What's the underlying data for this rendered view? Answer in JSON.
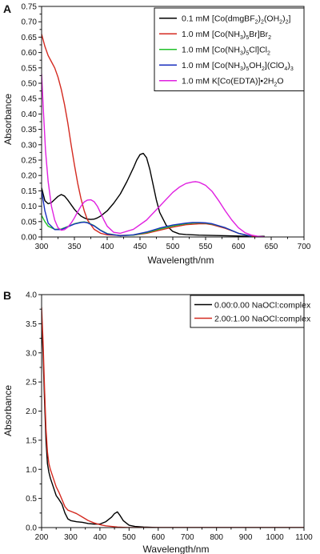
{
  "chart_data": [
    {
      "panel_label": "A",
      "type": "line",
      "xlabel": "Wavelength/nm",
      "ylabel": "Absorbance",
      "xlim": [
        300,
        700
      ],
      "ylim": [
        0,
        0.75
      ],
      "xticks": [
        300,
        350,
        400,
        450,
        500,
        550,
        600,
        650,
        700
      ],
      "yticks": [
        0.0,
        0.05,
        0.1,
        0.15,
        0.2,
        0.25,
        0.3,
        0.35,
        0.4,
        0.45,
        0.5,
        0.55,
        0.6,
        0.65,
        0.7,
        0.75
      ],
      "ytick_labels": [
        "0.00",
        "0.05",
        "0.10",
        "0.15",
        "0.20",
        "0.25",
        "0.30",
        "0.35",
        "0.40",
        "0.45",
        "0.50",
        "0.55",
        "0.60",
        "0.65",
        "0.70",
        "0.75"
      ],
      "legend_position": "top-right",
      "series": [
        {
          "name": "0.1 mM [Co(dmgBF2)2(OH2)2]",
          "legend_parts": [
            [
              "0.1 mM [Co(dmgBF",
              ""
            ],
            [
              "2",
              "sub"
            ],
            [
              ")",
              ""
            ],
            [
              "2",
              "sub"
            ],
            [
              "(OH",
              ""
            ],
            [
              "2",
              "sub"
            ],
            [
              ")",
              ""
            ],
            [
              "2",
              "sub"
            ],
            [
              "]",
              ""
            ]
          ],
          "color": "#000000",
          "x": [
            300,
            305,
            310,
            315,
            320,
            325,
            330,
            335,
            340,
            345,
            350,
            355,
            360,
            365,
            370,
            375,
            380,
            385,
            390,
            400,
            410,
            420,
            430,
            440,
            445,
            450,
            455,
            460,
            465,
            470,
            475,
            480,
            490,
            500,
            510,
            520,
            530,
            540,
            560,
            580,
            600,
            620,
            640
          ],
          "y": [
            0.16,
            0.118,
            0.108,
            0.112,
            0.122,
            0.132,
            0.138,
            0.133,
            0.12,
            0.105,
            0.09,
            0.078,
            0.068,
            0.062,
            0.058,
            0.057,
            0.058,
            0.062,
            0.068,
            0.085,
            0.11,
            0.14,
            0.18,
            0.225,
            0.25,
            0.268,
            0.272,
            0.258,
            0.22,
            0.17,
            0.12,
            0.08,
            0.038,
            0.018,
            0.01,
            0.008,
            0.007,
            0.006,
            0.005,
            0.004,
            0.003,
            0.002,
            0.002
          ]
        },
        {
          "name": "1.0 mM [Co(NH3)5Br]Br2",
          "legend_parts": [
            [
              "1.0 mM [Co(NH",
              ""
            ],
            [
              "3",
              "sub"
            ],
            [
              ")",
              ""
            ],
            [
              "5",
              "sub"
            ],
            [
              "Br]Br",
              ""
            ],
            [
              "2",
              "sub"
            ]
          ],
          "color": "#d42a20",
          "x": [
            300,
            305,
            310,
            315,
            320,
            325,
            330,
            335,
            340,
            345,
            350,
            355,
            360,
            365,
            370,
            380,
            390,
            400,
            420,
            440,
            460,
            480,
            500,
            520,
            540,
            550,
            560,
            580,
            600,
            620,
            630
          ],
          "y": [
            0.66,
            0.62,
            0.59,
            0.57,
            0.55,
            0.52,
            0.48,
            0.43,
            0.37,
            0.3,
            0.235,
            0.175,
            0.125,
            0.085,
            0.055,
            0.025,
            0.012,
            0.007,
            0.005,
            0.006,
            0.012,
            0.022,
            0.032,
            0.04,
            0.043,
            0.043,
            0.04,
            0.028,
            0.012,
            0.003,
            0.001
          ]
        },
        {
          "name": "1.0 mM [Co(NH3)5Cl]Cl2",
          "legend_parts": [
            [
              "1.0 mM [Co(NH",
              ""
            ],
            [
              "3",
              "sub"
            ],
            [
              ")",
              ""
            ],
            [
              "5",
              "sub"
            ],
            [
              "Cl]Cl",
              ""
            ],
            [
              "2",
              "sub"
            ]
          ],
          "color": "#22c02a",
          "x": [
            300,
            305,
            310,
            320,
            330,
            340,
            350,
            360,
            365,
            370,
            380,
            390,
            400,
            420,
            440,
            460,
            480,
            500,
            520,
            530,
            540,
            550,
            560,
            580,
            600,
            620
          ],
          "y": [
            0.07,
            0.05,
            0.035,
            0.025,
            0.026,
            0.034,
            0.043,
            0.048,
            0.049,
            0.047,
            0.037,
            0.022,
            0.011,
            0.004,
            0.006,
            0.014,
            0.026,
            0.036,
            0.043,
            0.045,
            0.046,
            0.045,
            0.042,
            0.03,
            0.012,
            0.002
          ]
        },
        {
          "name": "1.0 mM [Co(NH3)5OH2](ClO4)3",
          "legend_parts": [
            [
              "1.0 mM [Co(NH",
              ""
            ],
            [
              "3",
              "sub"
            ],
            [
              ")",
              ""
            ],
            [
              "5",
              "sub"
            ],
            [
              "OH",
              ""
            ],
            [
              "2",
              "sub"
            ],
            [
              "](ClO",
              ""
            ],
            [
              "4",
              "sub"
            ],
            [
              ")",
              ""
            ],
            [
              "3",
              "sub"
            ]
          ],
          "color": "#1a2fbf",
          "x": [
            300,
            305,
            310,
            320,
            330,
            340,
            350,
            360,
            365,
            370,
            380,
            390,
            400,
            420,
            440,
            460,
            480,
            500,
            520,
            530,
            540,
            550,
            560,
            580,
            600,
            620
          ],
          "y": [
            0.15,
            0.085,
            0.045,
            0.024,
            0.024,
            0.033,
            0.042,
            0.047,
            0.048,
            0.046,
            0.036,
            0.021,
            0.01,
            0.004,
            0.007,
            0.016,
            0.029,
            0.039,
            0.045,
            0.047,
            0.047,
            0.046,
            0.043,
            0.03,
            0.012,
            0.002
          ]
        },
        {
          "name": "1.0 mM K[Co(EDTA)]•2H2O",
          "legend_parts": [
            [
              "1.0 mM K[Co(EDTA)]•2H",
              ""
            ],
            [
              "2",
              "sub"
            ],
            [
              "O",
              ""
            ]
          ],
          "color": "#e020e0",
          "x": [
            300,
            303,
            306,
            310,
            315,
            320,
            325,
            330,
            335,
            340,
            345,
            350,
            355,
            360,
            365,
            370,
            375,
            380,
            385,
            390,
            395,
            400,
            410,
            420,
            440,
            460,
            480,
            500,
            510,
            520,
            530,
            535,
            540,
            550,
            560,
            570,
            580,
            590,
            600,
            610,
            620,
            630,
            640
          ],
          "y": [
            0.53,
            0.4,
            0.28,
            0.18,
            0.1,
            0.055,
            0.03,
            0.022,
            0.024,
            0.032,
            0.045,
            0.062,
            0.082,
            0.1,
            0.114,
            0.12,
            0.121,
            0.115,
            0.1,
            0.078,
            0.055,
            0.035,
            0.015,
            0.012,
            0.025,
            0.055,
            0.1,
            0.145,
            0.162,
            0.174,
            0.179,
            0.18,
            0.178,
            0.168,
            0.148,
            0.118,
            0.085,
            0.055,
            0.03,
            0.014,
            0.006,
            0.002,
            0.0
          ]
        }
      ]
    },
    {
      "panel_label": "B",
      "type": "line",
      "xlabel": "Wavelength/nm",
      "ylabel": "Absorbance",
      "xlim": [
        200,
        1100
      ],
      "ylim": [
        0,
        4.0
      ],
      "xticks": [
        200,
        300,
        400,
        500,
        600,
        700,
        800,
        900,
        1000,
        1100
      ],
      "yticks": [
        0.0,
        0.5,
        1.0,
        1.5,
        2.0,
        2.5,
        3.0,
        3.5,
        4.0
      ],
      "ytick_labels": [
        "0.0",
        "0.5",
        "1.0",
        "1.5",
        "2.0",
        "2.5",
        "3.0",
        "3.5",
        "4.0"
      ],
      "legend_position": "top-right",
      "series": [
        {
          "name": "0.00:0.00 NaOCl:complex",
          "legend_parts": [
            [
              "0.00:0.00 NaOCl:complex",
              ""
            ]
          ],
          "color": "#000000",
          "x": [
            190,
            195,
            200,
            205,
            210,
            215,
            220,
            225,
            230,
            240,
            250,
            260,
            270,
            280,
            290,
            300,
            320,
            340,
            360,
            380,
            400,
            420,
            440,
            450,
            460,
            470,
            480,
            500,
            520,
            550,
            600,
            700,
            800,
            900,
            1000,
            1100
          ],
          "y": [
            3.5,
            3.75,
            3.55,
            3.0,
            2.2,
            1.5,
            1.1,
            0.95,
            0.85,
            0.7,
            0.55,
            0.48,
            0.4,
            0.25,
            0.15,
            0.12,
            0.1,
            0.09,
            0.07,
            0.06,
            0.06,
            0.1,
            0.18,
            0.24,
            0.27,
            0.2,
            0.12,
            0.04,
            0.02,
            0.01,
            0.0,
            0.0,
            0.0,
            0.0,
            0.0,
            0.0
          ]
        },
        {
          "name": "2.00:1.00 NaOCl:complex",
          "legend_parts": [
            [
              "2.00:1.00 NaOCl:complex",
              ""
            ]
          ],
          "color": "#d42a20",
          "x": [
            190,
            195,
            200,
            205,
            210,
            215,
            220,
            225,
            230,
            240,
            250,
            260,
            270,
            280,
            290,
            300,
            320,
            340,
            360,
            380,
            400,
            420,
            440,
            460,
            480,
            500,
            550,
            600,
            700,
            800,
            900,
            1000,
            1100
          ],
          "y": [
            3.6,
            3.8,
            3.78,
            3.2,
            2.4,
            1.7,
            1.3,
            1.1,
            1.0,
            0.85,
            0.7,
            0.6,
            0.48,
            0.36,
            0.3,
            0.28,
            0.24,
            0.18,
            0.12,
            0.08,
            0.05,
            0.03,
            0.02,
            0.01,
            0.005,
            0.0,
            0.0,
            0.0,
            0.0,
            0.0,
            0.0,
            0.0,
            0.0
          ]
        }
      ]
    }
  ]
}
